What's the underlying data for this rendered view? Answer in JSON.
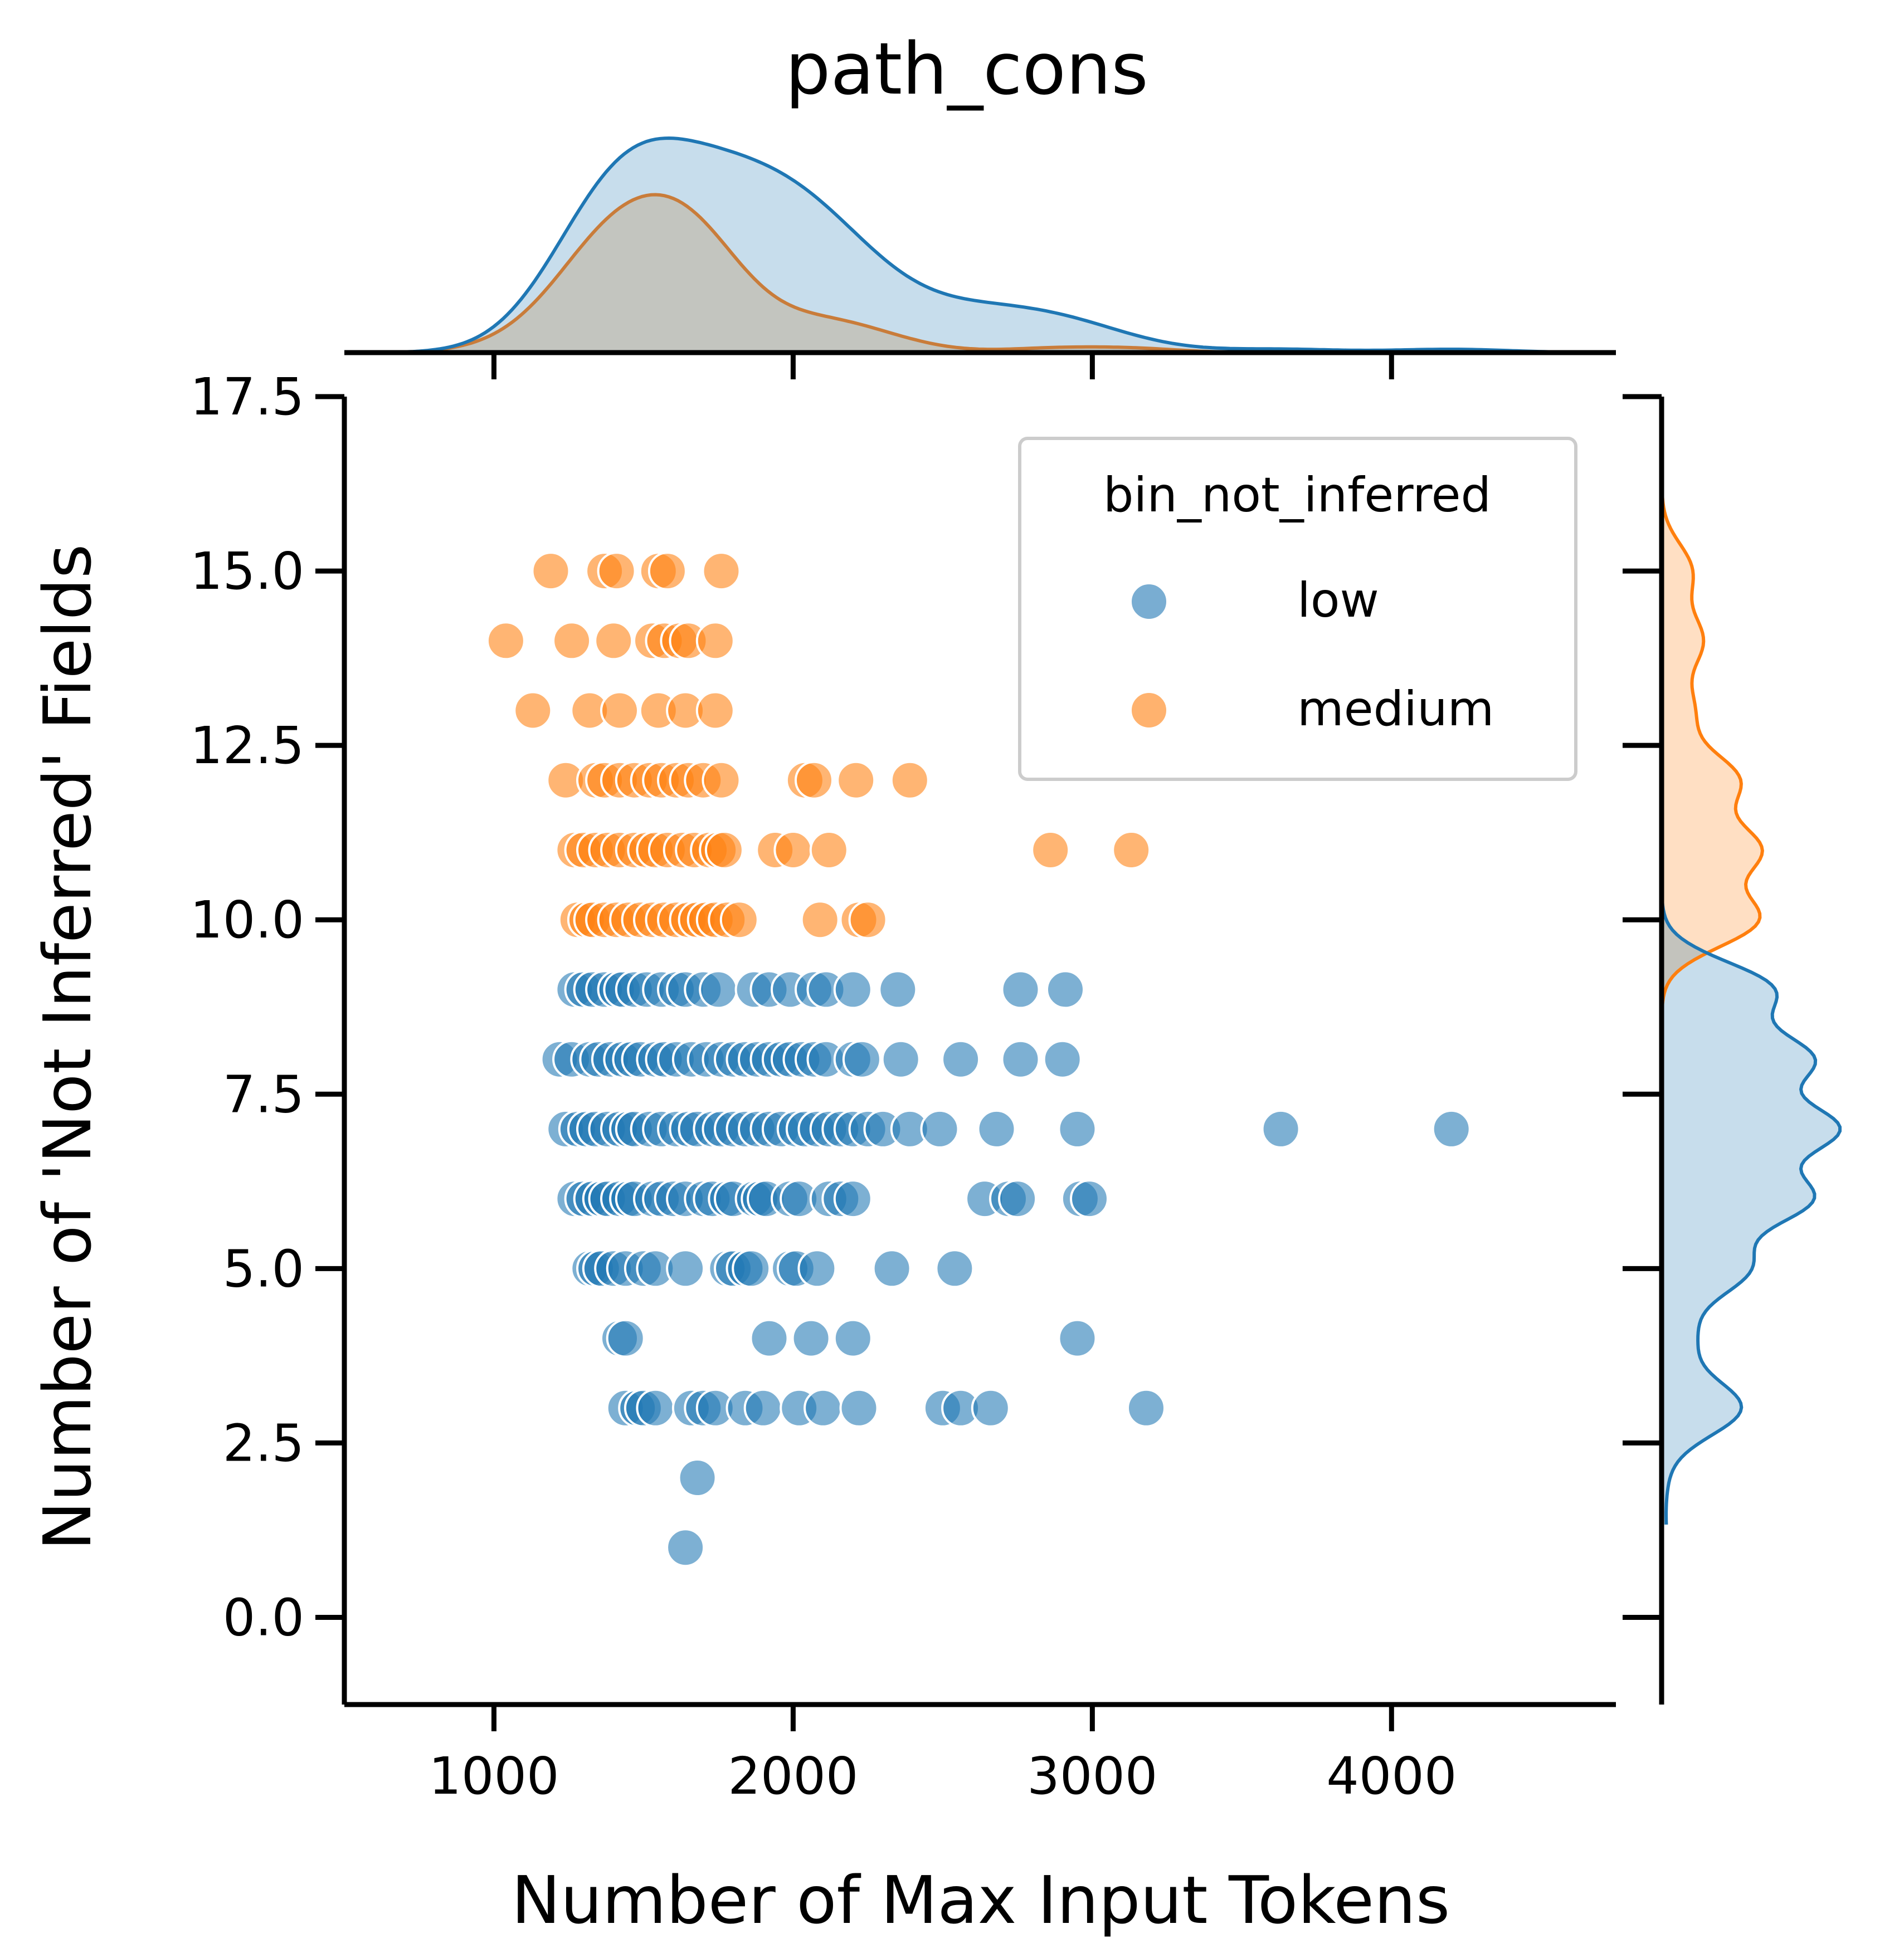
{
  "chart_data": {
    "type": "scatter",
    "title": "path_cons",
    "xlabel": "Number of Max Input Tokens",
    "ylabel": "Number of 'Not Inferred' Fields",
    "xlim": [
      500,
      4750
    ],
    "ylim": [
      -1.25,
      17.5
    ],
    "x_ticks": [
      1000,
      2000,
      3000,
      4000
    ],
    "x_tick_labels": [
      "1000",
      "2000",
      "3000",
      "4000"
    ],
    "y_ticks": [
      0,
      2.5,
      5,
      7.5,
      10,
      12.5,
      15,
      17.5
    ],
    "y_tick_labels": [
      "0.0",
      "2.5",
      "5.0",
      "7.5",
      "10.0",
      "12.5",
      "15.0",
      "17.5"
    ],
    "grid": false,
    "legend": {
      "title": "bin_not_inferred",
      "placement": "top-right",
      "entries": [
        "low",
        "medium"
      ]
    },
    "marginal_plots": {
      "top": "kde of x by group",
      "right": "kde of y by group"
    },
    "colors": {
      "low": "#1f77b4",
      "medium": "#ff7f0e",
      "overlap_fill": "#c3c3bd"
    },
    "series": [
      {
        "name": "low",
        "color": "#1f77b4",
        "points": [
          [
            1640,
            1
          ],
          [
            1680,
            2
          ],
          [
            1440,
            3
          ],
          [
            1480,
            3
          ],
          [
            1500,
            3
          ],
          [
            1540,
            3
          ],
          [
            1660,
            3
          ],
          [
            1700,
            3
          ],
          [
            1740,
            3
          ],
          [
            1840,
            3
          ],
          [
            1900,
            3
          ],
          [
            2020,
            3
          ],
          [
            2100,
            3
          ],
          [
            2220,
            3
          ],
          [
            2500,
            3
          ],
          [
            2560,
            3
          ],
          [
            2660,
            3
          ],
          [
            3180,
            3
          ],
          [
            1420,
            4
          ],
          [
            1440,
            4
          ],
          [
            1920,
            4
          ],
          [
            2060,
            4
          ],
          [
            2200,
            4
          ],
          [
            2950,
            4
          ],
          [
            1320,
            5
          ],
          [
            1340,
            5
          ],
          [
            1360,
            5
          ],
          [
            1400,
            5
          ],
          [
            1440,
            5
          ],
          [
            1500,
            5
          ],
          [
            1540,
            5
          ],
          [
            1640,
            5
          ],
          [
            1780,
            5
          ],
          [
            1800,
            5
          ],
          [
            1840,
            5
          ],
          [
            1860,
            5
          ],
          [
            1990,
            5
          ],
          [
            2010,
            5
          ],
          [
            2080,
            5
          ],
          [
            2330,
            5
          ],
          [
            2540,
            5
          ],
          [
            1270,
            6
          ],
          [
            1300,
            6
          ],
          [
            1330,
            6
          ],
          [
            1360,
            6
          ],
          [
            1380,
            6
          ],
          [
            1420,
            6
          ],
          [
            1450,
            6
          ],
          [
            1470,
            6
          ],
          [
            1530,
            6
          ],
          [
            1560,
            6
          ],
          [
            1600,
            6
          ],
          [
            1640,
            6
          ],
          [
            1700,
            6
          ],
          [
            1730,
            6
          ],
          [
            1780,
            6
          ],
          [
            1800,
            6
          ],
          [
            1870,
            6
          ],
          [
            1890,
            6
          ],
          [
            1910,
            6
          ],
          [
            1990,
            6
          ],
          [
            2020,
            6
          ],
          [
            2120,
            6
          ],
          [
            2160,
            6
          ],
          [
            2200,
            6
          ],
          [
            2640,
            6
          ],
          [
            2720,
            6
          ],
          [
            2750,
            6
          ],
          [
            2960,
            6
          ],
          [
            2990,
            6
          ],
          [
            1240,
            7
          ],
          [
            1280,
            7
          ],
          [
            1310,
            7
          ],
          [
            1340,
            7
          ],
          [
            1380,
            7
          ],
          [
            1420,
            7
          ],
          [
            1450,
            7
          ],
          [
            1470,
            7
          ],
          [
            1520,
            7
          ],
          [
            1560,
            7
          ],
          [
            1610,
            7
          ],
          [
            1650,
            7
          ],
          [
            1680,
            7
          ],
          [
            1730,
            7
          ],
          [
            1760,
            7
          ],
          [
            1800,
            7
          ],
          [
            1840,
            7
          ],
          [
            1880,
            7
          ],
          [
            1920,
            7
          ],
          [
            1960,
            7
          ],
          [
            2010,
            7
          ],
          [
            2040,
            7
          ],
          [
            2080,
            7
          ],
          [
            2120,
            7
          ],
          [
            2160,
            7
          ],
          [
            2200,
            7
          ],
          [
            2250,
            7
          ],
          [
            2300,
            7
          ],
          [
            2390,
            7
          ],
          [
            2490,
            7
          ],
          [
            2680,
            7
          ],
          [
            2950,
            7
          ],
          [
            3630,
            7
          ],
          [
            4200,
            7
          ],
          [
            1220,
            8
          ],
          [
            1260,
            8
          ],
          [
            1320,
            8
          ],
          [
            1350,
            8
          ],
          [
            1390,
            8
          ],
          [
            1430,
            8
          ],
          [
            1460,
            8
          ],
          [
            1490,
            8
          ],
          [
            1540,
            8
          ],
          [
            1570,
            8
          ],
          [
            1610,
            8
          ],
          [
            1660,
            8
          ],
          [
            1710,
            8
          ],
          [
            1760,
            8
          ],
          [
            1800,
            8
          ],
          [
            1840,
            8
          ],
          [
            1880,
            8
          ],
          [
            1920,
            8
          ],
          [
            1960,
            8
          ],
          [
            1990,
            8
          ],
          [
            2030,
            8
          ],
          [
            2070,
            8
          ],
          [
            2110,
            8
          ],
          [
            2200,
            8
          ],
          [
            2230,
            8
          ],
          [
            2360,
            8
          ],
          [
            2560,
            8
          ],
          [
            2760,
            8
          ],
          [
            2900,
            8
          ],
          [
            1270,
            9
          ],
          [
            1300,
            9
          ],
          [
            1330,
            9
          ],
          [
            1370,
            9
          ],
          [
            1410,
            9
          ],
          [
            1430,
            9
          ],
          [
            1470,
            9
          ],
          [
            1510,
            9
          ],
          [
            1560,
            9
          ],
          [
            1610,
            9
          ],
          [
            1640,
            9
          ],
          [
            1700,
            9
          ],
          [
            1750,
            9
          ],
          [
            1870,
            9
          ],
          [
            1920,
            9
          ],
          [
            1990,
            9
          ],
          [
            2070,
            9
          ],
          [
            2110,
            9
          ],
          [
            2200,
            9
          ],
          [
            2350,
            9
          ],
          [
            2760,
            9
          ],
          [
            2910,
            9
          ]
        ]
      },
      {
        "name": "medium",
        "color": "#ff7f0e",
        "points": [
          [
            1280,
            10
          ],
          [
            1310,
            10
          ],
          [
            1330,
            10
          ],
          [
            1370,
            10
          ],
          [
            1410,
            10
          ],
          [
            1450,
            10
          ],
          [
            1490,
            10
          ],
          [
            1530,
            10
          ],
          [
            1570,
            10
          ],
          [
            1610,
            10
          ],
          [
            1650,
            10
          ],
          [
            1680,
            10
          ],
          [
            1710,
            10
          ],
          [
            1740,
            10
          ],
          [
            1780,
            10
          ],
          [
            1820,
            10
          ],
          [
            2090,
            10
          ],
          [
            2220,
            10
          ],
          [
            2250,
            10
          ],
          [
            1270,
            11
          ],
          [
            1300,
            11
          ],
          [
            1340,
            11
          ],
          [
            1380,
            11
          ],
          [
            1420,
            11
          ],
          [
            1470,
            11
          ],
          [
            1510,
            11
          ],
          [
            1540,
            11
          ],
          [
            1580,
            11
          ],
          [
            1630,
            11
          ],
          [
            1670,
            11
          ],
          [
            1720,
            11
          ],
          [
            1750,
            11
          ],
          [
            1770,
            11
          ],
          [
            1940,
            11
          ],
          [
            2000,
            11
          ],
          [
            2120,
            11
          ],
          [
            2860,
            11
          ],
          [
            3130,
            11
          ],
          [
            1240,
            12
          ],
          [
            1340,
            12
          ],
          [
            1370,
            12
          ],
          [
            1420,
            12
          ],
          [
            1470,
            12
          ],
          [
            1520,
            12
          ],
          [
            1560,
            12
          ],
          [
            1610,
            12
          ],
          [
            1650,
            12
          ],
          [
            1700,
            12
          ],
          [
            1760,
            12
          ],
          [
            2040,
            12
          ],
          [
            2070,
            12
          ],
          [
            2210,
            12
          ],
          [
            2390,
            12
          ],
          [
            1130,
            13
          ],
          [
            1320,
            13
          ],
          [
            1420,
            13
          ],
          [
            1550,
            13
          ],
          [
            1640,
            13
          ],
          [
            1740,
            13
          ],
          [
            1040,
            14
          ],
          [
            1260,
            14
          ],
          [
            1400,
            14
          ],
          [
            1530,
            14
          ],
          [
            1570,
            14
          ],
          [
            1620,
            14
          ],
          [
            1650,
            14
          ],
          [
            1740,
            14
          ],
          [
            1190,
            15
          ],
          [
            1370,
            15
          ],
          [
            1410,
            15
          ],
          [
            1550,
            15
          ],
          [
            1580,
            15
          ],
          [
            1760,
            15
          ]
        ]
      }
    ]
  }
}
